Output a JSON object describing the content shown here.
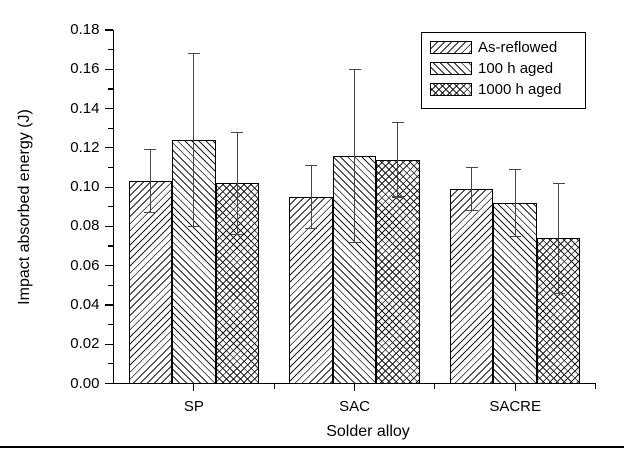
{
  "chart_data": {
    "type": "bar",
    "title": "",
    "xlabel": "Solder alloy",
    "ylabel": "Impact absorbed energy (J)",
    "categories": [
      "SP",
      "SAC",
      "SACRE"
    ],
    "series": [
      {
        "name": "As-reflowed",
        "hatch": "forward-diagonal",
        "values": [
          0.103,
          0.095,
          0.099
        ],
        "errors": [
          0.016,
          0.016,
          0.011
        ]
      },
      {
        "name": "100 h aged",
        "hatch": "backward-diagonal",
        "values": [
          0.124,
          0.116,
          0.092
        ],
        "errors": [
          0.044,
          0.044,
          0.017
        ]
      },
      {
        "name": "1000 h aged",
        "hatch": "cross-diagonal",
        "values": [
          0.102,
          0.114,
          0.074
        ],
        "errors": [
          0.026,
          0.019,
          0.028
        ]
      }
    ],
    "ylim": [
      0,
      0.18
    ],
    "ytick_step": 0.02,
    "ytick_minor_step": 0.01,
    "ytick_labels": [
      "0.00",
      "0.02",
      "0.04",
      "0.06",
      "0.08",
      "0.10",
      "0.12",
      "0.14",
      "0.16",
      "0.18"
    ],
    "legend_position": "top-right",
    "grid": false,
    "colors": {
      "bar_fill": "#ffffff",
      "bar_edge": "#000000",
      "hatch_line": "#1f1f1f",
      "error_bar": "#474747",
      "axis": "#000000",
      "text": "#000000",
      "background": "#ffffff"
    }
  }
}
